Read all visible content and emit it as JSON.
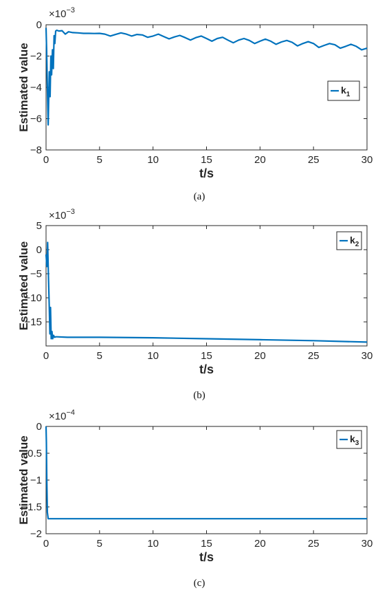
{
  "accent_color": "#0072BD",
  "chart_data": [
    {
      "type": "line",
      "caption": "(a)",
      "xlabel": "t/s",
      "ylabel": "Estimated value",
      "xlim": [
        0,
        30
      ],
      "ylim": [
        -8,
        0
      ],
      "xticks": [
        "0",
        "5",
        "10",
        "15",
        "20",
        "25",
        "30"
      ],
      "yticks": [
        "0",
        "-2",
        "-4",
        "-6",
        "-8"
      ],
      "multiplier": {
        "base": "×10",
        "exponent": "−3"
      },
      "legend_position": "top-right",
      "series": [
        {
          "name": "k",
          "subscript": "1",
          "color": "#0072BD",
          "x": [
            0,
            0.05,
            0.12,
            0.2,
            0.3,
            0.38,
            0.45,
            0.52,
            0.6,
            0.68,
            0.75,
            0.82,
            0.9,
            1.0,
            1.2,
            1.5,
            1.8,
            2.1,
            2.5,
            3.0,
            3.5,
            4.0,
            4.5,
            5.0,
            5.5,
            6.0,
            6.5,
            7.0,
            7.5,
            8.0,
            8.5,
            9.0,
            9.5,
            10.0,
            10.5,
            11.0,
            11.5,
            12.0,
            12.5,
            13.0,
            13.5,
            14.0,
            14.5,
            15.0,
            15.5,
            16.0,
            16.5,
            17.0,
            17.5,
            18.0,
            18.5,
            19.0,
            19.5,
            20.0,
            20.5,
            21.0,
            21.5,
            22.0,
            22.5,
            23.0,
            23.5,
            24.0,
            24.5,
            25.0,
            25.5,
            26.0,
            26.5,
            27.0,
            27.5,
            28.0,
            28.5,
            29.0,
            29.5,
            30.0
          ],
          "y": [
            -0.2,
            -1.5,
            -4.0,
            -6.4,
            -3.0,
            -4.6,
            -2.0,
            -3.2,
            -1.6,
            -2.8,
            -0.7,
            -1.2,
            -0.4,
            -0.35,
            -0.4,
            -0.38,
            -0.6,
            -0.45,
            -0.5,
            -0.52,
            -0.55,
            -0.55,
            -0.56,
            -0.55,
            -0.6,
            -0.72,
            -0.62,
            -0.52,
            -0.6,
            -0.72,
            -0.62,
            -0.65,
            -0.8,
            -0.72,
            -0.6,
            -0.75,
            -0.9,
            -0.78,
            -0.68,
            -0.82,
            -0.98,
            -0.82,
            -0.72,
            -0.88,
            -1.05,
            -0.88,
            -0.8,
            -0.98,
            -1.15,
            -0.98,
            -0.88,
            -1.0,
            -1.2,
            -1.05,
            -0.92,
            -1.05,
            -1.25,
            -1.1,
            -1.0,
            -1.12,
            -1.35,
            -1.2,
            -1.08,
            -1.2,
            -1.45,
            -1.32,
            -1.2,
            -1.28,
            -1.5,
            -1.38,
            -1.25,
            -1.38,
            -1.6,
            -1.5
          ]
        }
      ]
    },
    {
      "type": "line",
      "caption": "(b)",
      "xlabel": "t/s",
      "ylabel": "Estimated value",
      "xlim": [
        0,
        30
      ],
      "ylim": [
        -20,
        5
      ],
      "xticks": [
        "0",
        "5",
        "10",
        "15",
        "20",
        "25",
        "30"
      ],
      "yticks": [
        "5",
        "0",
        "-5",
        "-10",
        "-15"
      ],
      "multiplier": {
        "base": "×10",
        "exponent": "−3"
      },
      "legend_position": "top-right",
      "series": [
        {
          "name": "k",
          "subscript": "2",
          "color": "#0072BD",
          "x": [
            0,
            0.08,
            0.15,
            0.22,
            0.3,
            0.36,
            0.42,
            0.48,
            0.55,
            0.62,
            0.7,
            0.8,
            0.9,
            1.0,
            2.0,
            5.0,
            10.0,
            15.0,
            20.0,
            25.0,
            30.0
          ],
          "y": [
            -1.0,
            -3.5,
            1.5,
            -5.0,
            -12.0,
            -17.5,
            -12.0,
            -18.5,
            -17.0,
            -18.5,
            -17.8,
            -18.2,
            -18.1,
            -18.1,
            -18.2,
            -18.2,
            -18.3,
            -18.5,
            -18.7,
            -18.9,
            -19.2
          ]
        }
      ]
    },
    {
      "type": "line",
      "caption": "(c)",
      "xlabel": "t/s",
      "ylabel": "Estimated value",
      "xlim": [
        0,
        30
      ],
      "ylim": [
        -2,
        0
      ],
      "xticks": [
        "0",
        "5",
        "10",
        "15",
        "20",
        "25",
        "30"
      ],
      "yticks": [
        "0",
        "-0.5",
        "-1",
        "-1.5",
        "-2"
      ],
      "multiplier": {
        "base": "×10",
        "exponent": "−4"
      },
      "legend_position": "top-right",
      "series": [
        {
          "name": "k",
          "subscript": "3",
          "color": "#0072BD",
          "x": [
            0,
            0.03,
            0.07,
            0.12,
            0.2,
            1.0,
            5.0,
            10.0,
            15.0,
            20.0,
            25.0,
            30.0
          ],
          "y": [
            0,
            -0.3,
            -1.0,
            -1.6,
            -1.72,
            -1.72,
            -1.72,
            -1.72,
            -1.72,
            -1.72,
            -1.72,
            -1.72
          ]
        }
      ]
    }
  ]
}
